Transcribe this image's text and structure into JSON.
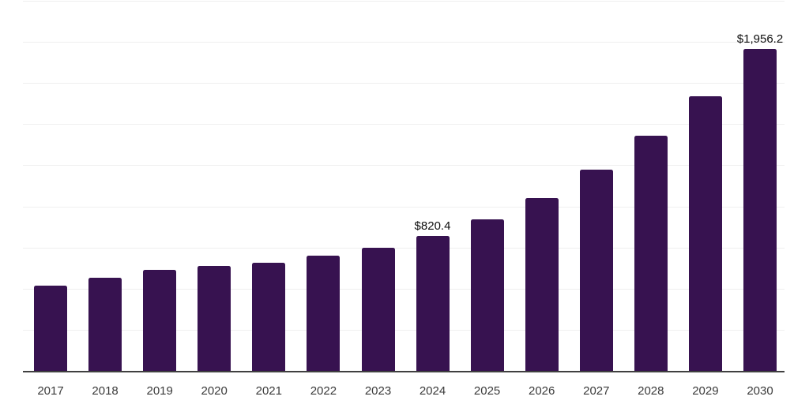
{
  "chart_data": {
    "type": "bar",
    "title": "",
    "xlabel": "",
    "ylabel": "",
    "categories": [
      "2017",
      "2018",
      "2019",
      "2020",
      "2021",
      "2022",
      "2023",
      "2024",
      "2025",
      "2026",
      "2027",
      "2028",
      "2029",
      "2030"
    ],
    "values": [
      518,
      566,
      612,
      638,
      657,
      700,
      748,
      820.4,
      921,
      1051,
      1223,
      1430,
      1672,
      1956.2
    ],
    "value_labels": {
      "2024": "$820.4",
      "2030": "$1,956.2"
    },
    "ylim": [
      0,
      2250
    ],
    "grid_step": 250,
    "grid": true,
    "legend": false,
    "colors": {
      "bar": "#371250",
      "grid": "#efefef",
      "axis": "#404040",
      "tick_label": "#3a3a3a",
      "value_label": "#0d0d0d",
      "background": "#ffffff"
    }
  }
}
